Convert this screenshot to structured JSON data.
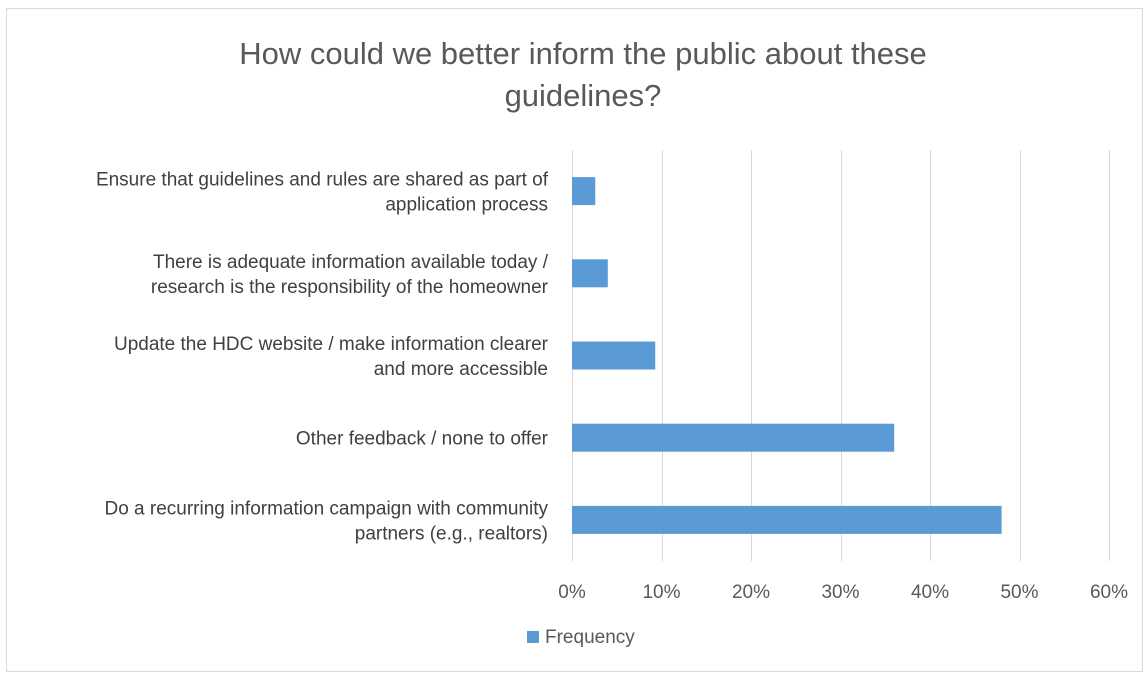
{
  "chart_data": {
    "type": "bar",
    "orientation": "horizontal",
    "title_lines": [
      "How could we better inform the public about these",
      "guidelines?"
    ],
    "categories": [
      [
        "Ensure that guidelines and rules are shared as part of",
        "application process"
      ],
      [
        "There is adequate information available today /",
        "research is the responsibility of the homeowner"
      ],
      [
        "Update the HDC website / make information clearer",
        "and more accessible"
      ],
      [
        "Other feedback / none to offer"
      ],
      [
        "Do a recurring information campaign with community",
        "partners (e.g., realtors)"
      ]
    ],
    "series": [
      {
        "name": "Frequency",
        "values": [
          2.6,
          4.0,
          9.3,
          36.0,
          48.0
        ],
        "color": "#5b9bd5"
      }
    ],
    "xlim": [
      0,
      60
    ],
    "xticks": [
      0,
      10,
      20,
      30,
      40,
      50,
      60
    ],
    "tick_labels": [
      "0%",
      "10%",
      "20%",
      "30%",
      "40%",
      "50%",
      "60%"
    ],
    "grid": true,
    "legend_position": "bottom"
  }
}
